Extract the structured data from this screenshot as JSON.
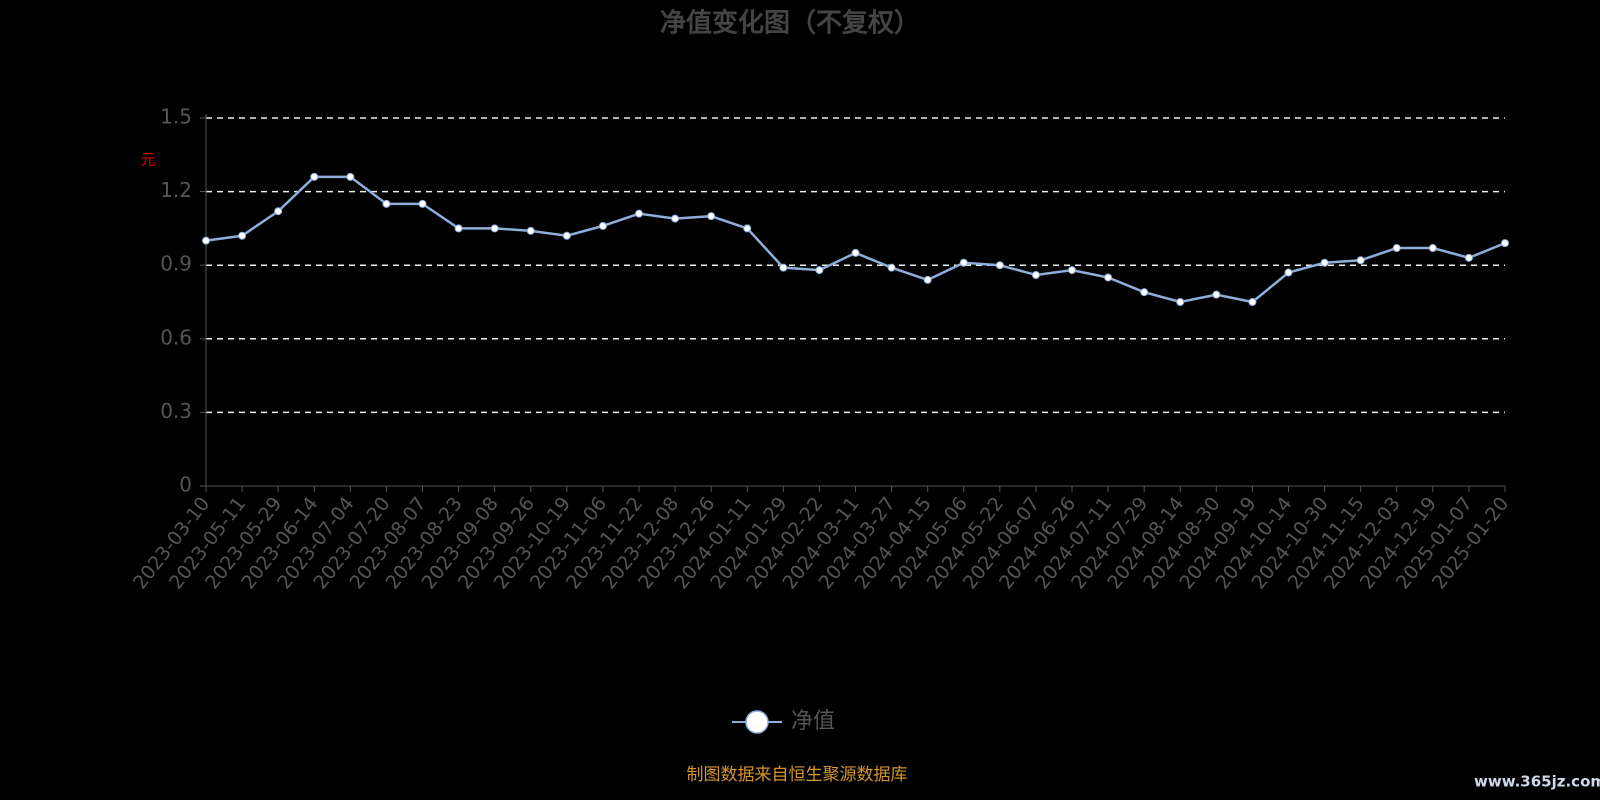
{
  "chart_data": {
    "type": "line",
    "title": "净值变化图（不复权）",
    "y_label": "元",
    "categories": [
      "2023-03-10",
      "2023-05-11",
      "2023-05-29",
      "2023-06-14",
      "2023-07-04",
      "2023-07-20",
      "2023-08-07",
      "2023-08-23",
      "2023-09-08",
      "2023-09-26",
      "2023-10-19",
      "2023-11-06",
      "2023-11-22",
      "2023-12-08",
      "2023-12-26",
      "2024-01-11",
      "2024-01-29",
      "2024-02-22",
      "2024-03-11",
      "2024-03-27",
      "2024-04-15",
      "2024-05-06",
      "2024-05-22",
      "2024-06-07",
      "2024-06-26",
      "2024-07-11",
      "2024-07-29",
      "2024-08-14",
      "2024-08-30",
      "2024-09-19",
      "2024-10-14",
      "2024-10-30",
      "2024-11-15",
      "2024-12-03",
      "2024-12-19",
      "2025-01-07",
      "2025-01-20"
    ],
    "series": [
      {
        "name": "净值",
        "color": "#8eaedc",
        "values": [
          1.0,
          1.02,
          1.12,
          1.26,
          1.26,
          1.15,
          1.15,
          1.05,
          1.05,
          1.04,
          1.02,
          1.06,
          1.11,
          1.09,
          1.1,
          1.05,
          0.89,
          0.88,
          0.95,
          0.89,
          0.84,
          0.91,
          0.9,
          0.86,
          0.88,
          0.85,
          0.79,
          0.75,
          0.78,
          0.75,
          0.87,
          0.91,
          0.92,
          0.97,
          0.97,
          0.93,
          0.99
        ]
      }
    ],
    "ylim": [
      0,
      1.5
    ],
    "yticks": [
      0,
      0.3,
      0.6,
      0.9,
      1.2,
      1.5
    ],
    "grid": true,
    "footer": "制图数据来自恒生聚源数据库",
    "watermark": "www.365jz.com"
  }
}
